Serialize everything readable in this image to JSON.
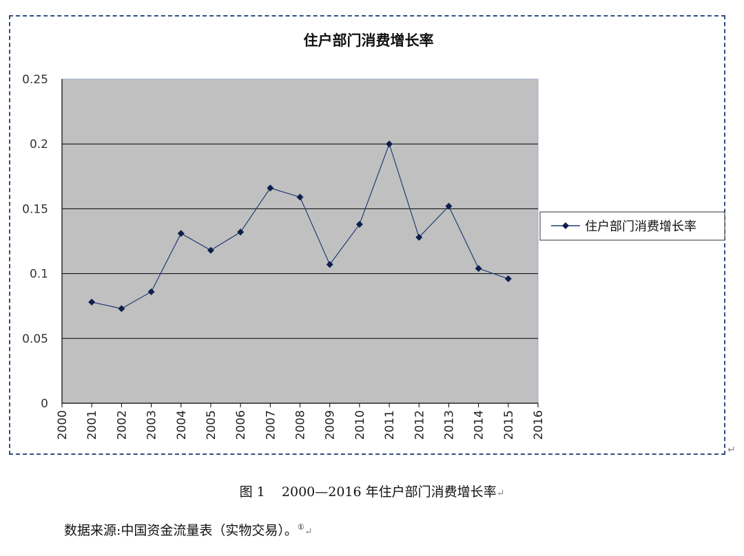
{
  "chart_data": {
    "type": "line",
    "title": "住户部门消费增长率",
    "categories": [
      "2000",
      "2001",
      "2002",
      "2003",
      "2004",
      "2005",
      "2006",
      "2007",
      "2008",
      "2009",
      "2010",
      "2011",
      "2012",
      "2013",
      "2014",
      "2015",
      "2016"
    ],
    "series": [
      {
        "name": "住户部门消费增长率",
        "x": [
          "2001",
          "2002",
          "2003",
          "2004",
          "2005",
          "2006",
          "2007",
          "2008",
          "2009",
          "2010",
          "2011",
          "2012",
          "2013",
          "2014",
          "2015"
        ],
        "values": [
          0.078,
          0.073,
          0.086,
          0.131,
          0.118,
          0.132,
          0.166,
          0.159,
          0.107,
          0.138,
          0.2,
          0.128,
          0.152,
          0.104,
          0.096
        ]
      }
    ],
    "yticks": [
      "0",
      "0.05",
      "0.1",
      "0.15",
      "0.2",
      "0.25"
    ],
    "ylim": [
      0,
      0.25
    ],
    "grid": true,
    "legend": "right",
    "colors": {
      "line": "#1f3b73",
      "marker": "#0d1f4d",
      "plot_bg": "#c0c0c0",
      "grid": "#000000",
      "frame": "#2f4f7f"
    }
  },
  "caption": {
    "label": "图 1",
    "text": "2000—2016 年住户部门消费增长率",
    "mark": "↵"
  },
  "source": {
    "text": "数据来源:中国资金流量表（实物交易）。",
    "footnote": "①",
    "mark": "↵"
  },
  "corner_mark": "↵"
}
